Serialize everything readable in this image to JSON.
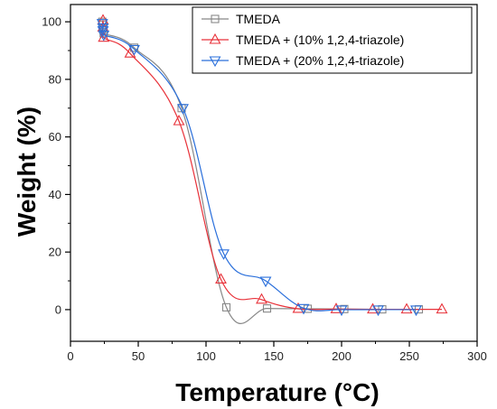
{
  "chart_data": {
    "type": "line",
    "xlabel": "Temperature (°C)",
    "ylabel": "Weight (%)",
    "xlim": [
      0,
      300
    ],
    "ylim": [
      -11,
      106
    ],
    "x_ticks": [
      0,
      50,
      100,
      150,
      200,
      250,
      300
    ],
    "y_ticks": [
      0,
      20,
      40,
      60,
      80,
      100
    ],
    "grid": false,
    "legend_position": "top-right",
    "series": [
      {
        "name": "TMEDA",
        "color": "#888888",
        "marker": "square",
        "x": [
          23.5,
          24,
          24,
          24.5,
          47,
          82,
          115,
          145,
          175,
          202,
          230,
          257
        ],
        "y": [
          100,
          99,
          97.5,
          96,
          91,
          70,
          0.8,
          0.4,
          0.3,
          0.2,
          0.1,
          0.1
        ]
      },
      {
        "name": "TMEDA + (10% 1,2,4-triazole)",
        "color": "#e8323a",
        "marker": "triangle-up",
        "x": [
          24,
          24,
          24.5,
          44,
          80,
          111,
          141,
          168,
          196,
          223,
          248,
          274
        ],
        "y": [
          100.5,
          98,
          94.5,
          89,
          65.5,
          10.5,
          3.5,
          0.3,
          0.2,
          0.1,
          0.1,
          0.1
        ]
      },
      {
        "name": "TMEDA + (20% 1,2,4-triazole)",
        "color": "#2a6fdb",
        "marker": "triangle-down",
        "x": [
          23.5,
          24,
          24,
          24.5,
          47,
          83,
          113,
          144,
          172,
          200,
          227,
          255
        ],
        "y": [
          99.5,
          98,
          97,
          95.5,
          90.5,
          70,
          19.5,
          10,
          0.5,
          0,
          0,
          0
        ]
      }
    ]
  }
}
